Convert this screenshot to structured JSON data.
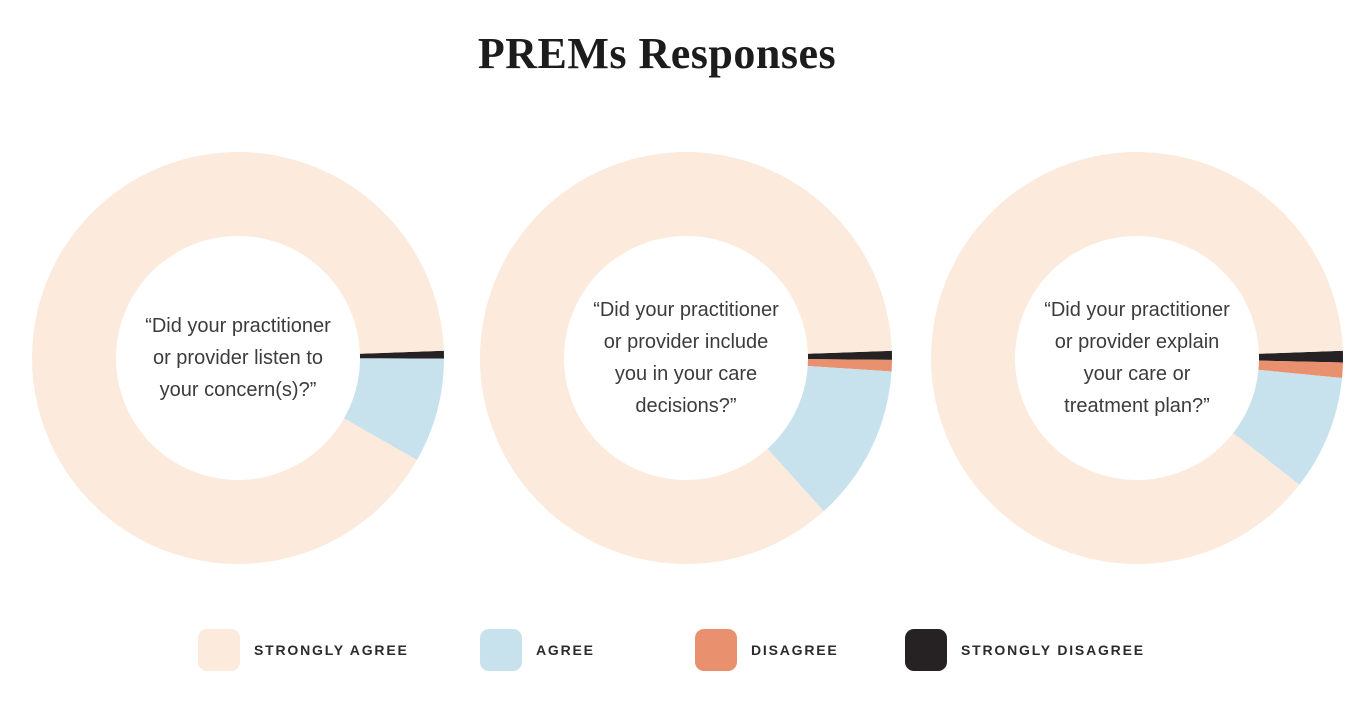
{
  "page": {
    "title": "PREMs Responses",
    "background_color": "#ffffff"
  },
  "legend": {
    "position": "bottom",
    "items": [
      {
        "key": "strongly_agree",
        "label": "STRONGLY AGREE",
        "color": "#FCEADC"
      },
      {
        "key": "agree",
        "label": "AGREE",
        "color": "#C7E2EC"
      },
      {
        "key": "disagree",
        "label": "DISAGREE",
        "color": "#E9906E"
      },
      {
        "key": "strongly_disagree",
        "label": "STRONGLY DISAGREE",
        "color": "#262223"
      }
    ]
  },
  "chart_data": [
    {
      "type": "pie",
      "subtype": "donut",
      "center_label": "“Did your practitioner or provider listen to your concern(s)?”",
      "center_label_lines": [
        "“Did your practitioner",
        "or provider listen to",
        "your concern(s)?”"
      ],
      "categories": [
        "Strongly Agree",
        "Agree",
        "Disagree",
        "Strongly Disagree"
      ],
      "values": [
        91.2,
        8.2,
        0,
        0.6
      ],
      "units": "percent",
      "start_angle_deg_from_3oclock": -2,
      "draw_direction": "clockwise",
      "inner_radius_ratio": 0.59,
      "data_labels": "none"
    },
    {
      "type": "pie",
      "subtype": "donut",
      "center_label": "“Did your practitioner or provider include you in your care decisions?”",
      "center_label_lines": [
        "“Did your practitioner",
        "or provider include",
        "you in your care",
        "decisions?”"
      ],
      "categories": [
        "Strongly Agree",
        "Agree",
        "Disagree",
        "Strongly Disagree"
      ],
      "values": [
        86.1,
        12.3,
        0.9,
        0.7
      ],
      "units": "percent",
      "start_angle_deg_from_3oclock": -2,
      "draw_direction": "clockwise",
      "inner_radius_ratio": 0.59,
      "data_labels": "none"
    },
    {
      "type": "pie",
      "subtype": "donut",
      "center_label": "“Did your practitioner or provider explain your care or treatment plan?”",
      "center_label_lines": [
        "“Did your practitioner",
        "or provider explain",
        "your care or",
        "treatment plan?”"
      ],
      "categories": [
        "Strongly Agree",
        "Agree",
        "Disagree",
        "Strongly Disagree"
      ],
      "values": [
        88.9,
        9.0,
        1.2,
        0.9
      ],
      "units": "percent",
      "start_angle_deg_from_3oclock": -2,
      "draw_direction": "clockwise",
      "inner_radius_ratio": 0.59,
      "data_labels": "none"
    }
  ]
}
